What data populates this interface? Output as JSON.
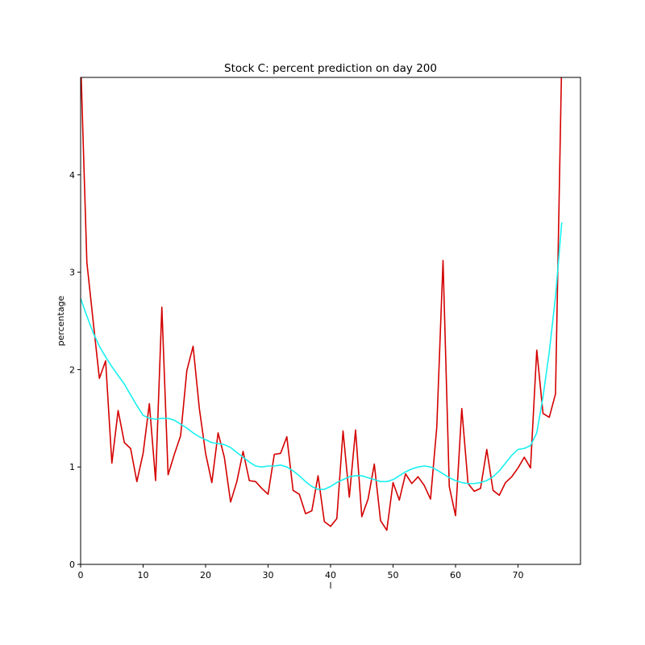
{
  "chart_data": {
    "type": "line",
    "title": "Stock C: percent prediction on day 200",
    "xlabel": "l",
    "ylabel": "percentage",
    "xlim": [
      0,
      80
    ],
    "ylim": [
      0,
      5
    ],
    "xticks": [
      0,
      10,
      20,
      30,
      40,
      50,
      60,
      70
    ],
    "yticks": [
      0,
      1,
      2,
      3,
      4
    ],
    "grid": false,
    "series": [
      {
        "color": "#d40000",
        "x": [
          0,
          1,
          2,
          3,
          4,
          5,
          6,
          7,
          8,
          9,
          10,
          11,
          12,
          13,
          14,
          15,
          16,
          17,
          18,
          19,
          20,
          21,
          22,
          23,
          24,
          25,
          26,
          27,
          28,
          29,
          30,
          31,
          32,
          33,
          34,
          35,
          36,
          37,
          38,
          39,
          40,
          41,
          42,
          43,
          44,
          45,
          46,
          47,
          48,
          49,
          50,
          51,
          52,
          53,
          54,
          55,
          56,
          57,
          58,
          59,
          60,
          61,
          62,
          63,
          64,
          65,
          66,
          67,
          68,
          69,
          70,
          71,
          72,
          73,
          74,
          75,
          76,
          77
        ],
        "values": [
          5.2,
          3.1,
          2.5,
          1.91,
          2.09,
          1.04,
          1.58,
          1.25,
          1.19,
          0.85,
          1.14,
          1.65,
          0.86,
          2.64,
          0.92,
          1.13,
          1.32,
          1.99,
          2.24,
          1.6,
          1.14,
          0.84,
          1.35,
          1.1,
          0.64,
          0.85,
          1.16,
          0.86,
          0.85,
          0.78,
          0.72,
          1.13,
          1.14,
          1.31,
          0.76,
          0.72,
          0.52,
          0.55,
          0.91,
          0.44,
          0.39,
          0.47,
          1.37,
          0.69,
          1.38,
          0.49,
          0.67,
          1.03,
          0.45,
          0.35,
          0.84,
          0.66,
          0.93,
          0.83,
          0.9,
          0.81,
          0.67,
          1.41,
          3.12,
          0.8,
          0.5,
          1.6,
          0.83,
          0.75,
          0.78,
          1.18,
          0.76,
          0.71,
          0.84,
          0.9,
          0.99,
          1.1,
          0.99,
          2.2,
          1.55,
          1.51,
          1.75,
          5.2
        ]
      },
      {
        "color": "#19f0f0",
        "x": [
          0,
          1,
          2,
          3,
          4,
          5,
          6,
          7,
          8,
          9,
          10,
          11,
          12,
          13,
          14,
          15,
          16,
          17,
          18,
          19,
          20,
          21,
          22,
          23,
          24,
          25,
          26,
          27,
          28,
          29,
          30,
          31,
          32,
          33,
          34,
          35,
          36,
          37,
          38,
          39,
          40,
          41,
          42,
          43,
          44,
          45,
          46,
          47,
          48,
          49,
          50,
          51,
          52,
          53,
          54,
          55,
          56,
          57,
          58,
          59,
          60,
          61,
          62,
          63,
          64,
          65,
          66,
          67,
          68,
          69,
          70,
          71,
          72,
          73,
          74,
          75,
          76,
          77
        ],
        "values": [
          2.73,
          2.55,
          2.38,
          2.24,
          2.13,
          2.03,
          1.94,
          1.85,
          1.74,
          1.63,
          1.53,
          1.5,
          1.49,
          1.5,
          1.5,
          1.48,
          1.44,
          1.4,
          1.35,
          1.31,
          1.28,
          1.25,
          1.24,
          1.23,
          1.2,
          1.15,
          1.1,
          1.05,
          1.01,
          1.0,
          1.01,
          1.01,
          1.02,
          1.0,
          0.96,
          0.91,
          0.85,
          0.8,
          0.77,
          0.77,
          0.8,
          0.84,
          0.87,
          0.9,
          0.91,
          0.91,
          0.89,
          0.87,
          0.85,
          0.85,
          0.87,
          0.91,
          0.95,
          0.98,
          1.0,
          1.01,
          1.0,
          0.97,
          0.93,
          0.89,
          0.86,
          0.84,
          0.83,
          0.83,
          0.84,
          0.86,
          0.9,
          0.96,
          1.04,
          1.12,
          1.18,
          1.19,
          1.22,
          1.35,
          1.72,
          2.18,
          2.75,
          3.51
        ]
      }
    ]
  }
}
